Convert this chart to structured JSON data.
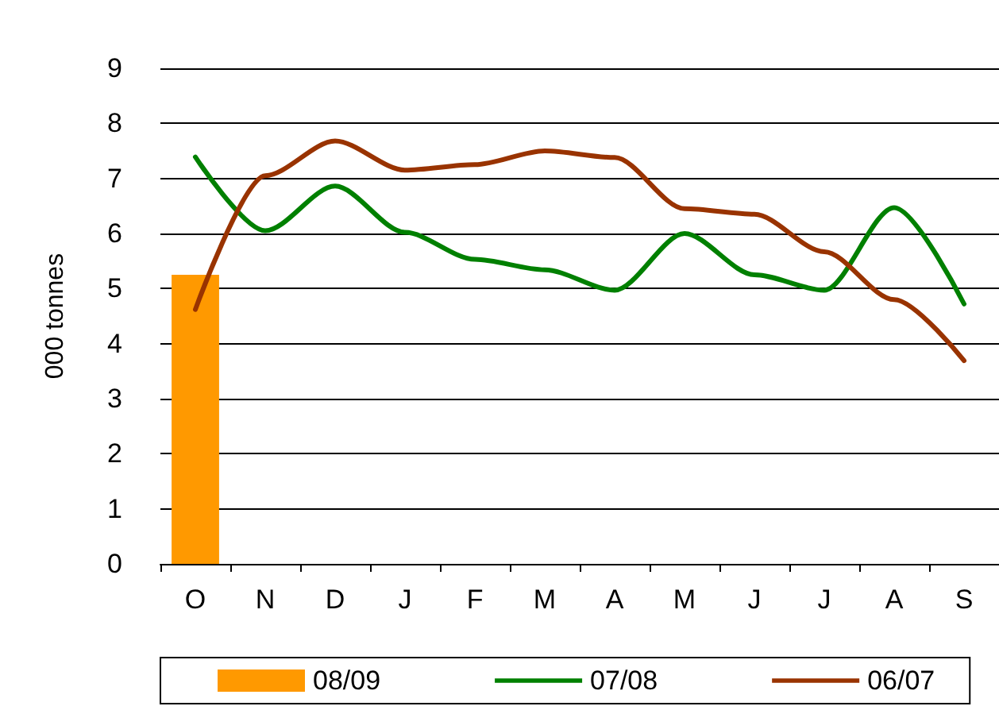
{
  "chart_data": {
    "type": "bar",
    "ylabel": "000 tonnes",
    "categories": [
      "O",
      "N",
      "D",
      "J",
      "F",
      "M",
      "A",
      "M",
      "J",
      "J",
      "A",
      "S"
    ],
    "ylim": [
      0,
      9
    ],
    "yticks": [
      0,
      1,
      2,
      3,
      4,
      5,
      6,
      7,
      8,
      9
    ],
    "grid": "y",
    "legend": "bottom",
    "marker": "none",
    "series": [
      {
        "name": "08/09",
        "color": "#ff9900",
        "values": [
          5.25,
          null,
          null,
          null,
          null,
          null,
          null,
          null,
          null,
          null,
          null,
          null
        ]
      },
      {
        "name": "07/08",
        "type": "line",
        "color": "#008000",
        "values": [
          7.39,
          6.05,
          6.86,
          6.02,
          5.53,
          5.34,
          4.97,
          6.0,
          5.25,
          4.97,
          6.47,
          4.72
        ]
      },
      {
        "name": "06/07",
        "type": "line",
        "color": "#993300",
        "values": [
          4.62,
          7.05,
          7.68,
          7.15,
          7.25,
          7.5,
          7.38,
          6.45,
          6.35,
          5.67,
          4.8,
          3.69
        ]
      }
    ]
  }
}
